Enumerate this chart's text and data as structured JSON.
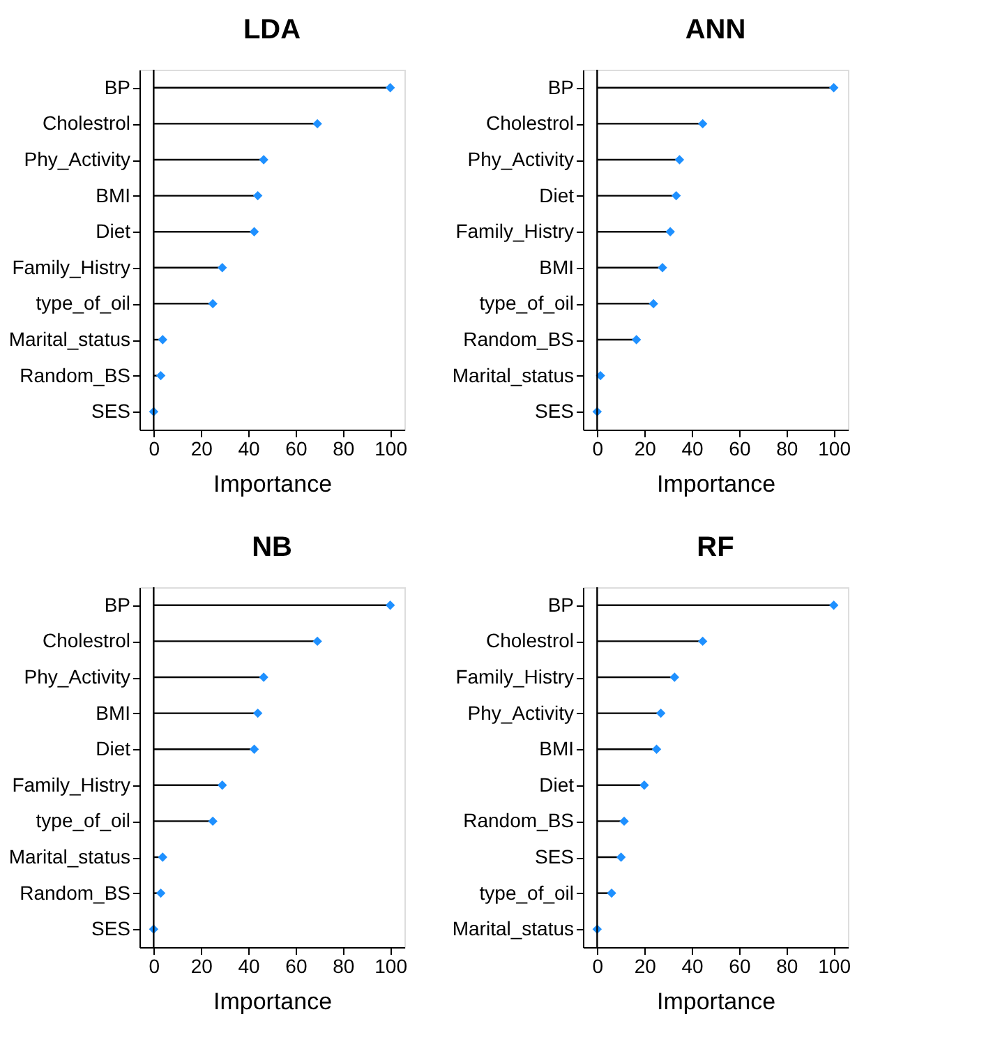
{
  "chart_data": [
    {
      "type": "lollipop",
      "orientation": "horizontal",
      "title": "LDA",
      "xlabel": "Importance",
      "categories": [
        "BP",
        "Cholestrol",
        "Phy_Activity",
        "BMI",
        "Diet",
        "Family_Histry",
        "type_of_oil",
        "Marital_status",
        "Random_BS",
        "SES"
      ],
      "series": [
        {
          "color": "#1e90ff",
          "values": [
            100,
            69.2,
            46.5,
            44,
            42.5,
            29,
            25,
            3.8,
            3,
            0
          ]
        }
      ],
      "xlim": [
        -6,
        106
      ],
      "xticks": [
        0,
        20,
        40,
        60,
        80,
        100
      ],
      "ref_lines": [
        {
          "axis": "x",
          "value": 0
        }
      ],
      "marker": "diamond",
      "grid": false
    },
    {
      "type": "lollipop",
      "orientation": "horizontal",
      "title": "ANN",
      "xlabel": "Importance",
      "categories": [
        "BP",
        "Cholestrol",
        "Phy_Activity",
        "Diet",
        "Family_Histry",
        "BMI",
        "type_of_oil",
        "Random_BS",
        "Marital_status",
        "SES"
      ],
      "series": [
        {
          "color": "#1e90ff",
          "values": [
            100,
            44.6,
            34.8,
            33.4,
            30.9,
            27.6,
            23.8,
            16.6,
            1.4,
            0
          ]
        }
      ],
      "xlim": [
        -6,
        106
      ],
      "xticks": [
        0,
        20,
        40,
        60,
        80,
        100
      ],
      "ref_lines": [
        {
          "axis": "x",
          "value": 0
        }
      ],
      "marker": "diamond",
      "grid": false
    },
    {
      "type": "lollipop",
      "orientation": "horizontal",
      "title": "NB",
      "xlabel": "Importance",
      "categories": [
        "BP",
        "Cholestrol",
        "Phy_Activity",
        "BMI",
        "Diet",
        "Family_Histry",
        "type_of_oil",
        "Marital_status",
        "Random_BS",
        "SES"
      ],
      "series": [
        {
          "color": "#1e90ff",
          "values": [
            100,
            69.2,
            46.5,
            44,
            42.5,
            29,
            25,
            3.8,
            3,
            0
          ]
        }
      ],
      "xlim": [
        -6,
        106
      ],
      "xticks": [
        0,
        20,
        40,
        60,
        80,
        100
      ],
      "ref_lines": [
        {
          "axis": "x",
          "value": 0
        }
      ],
      "marker": "diamond",
      "grid": false
    },
    {
      "type": "lollipop",
      "orientation": "horizontal",
      "title": "RF",
      "xlabel": "Importance",
      "categories": [
        "BP",
        "Cholestrol",
        "Family_Histry",
        "Phy_Activity",
        "BMI",
        "Diet",
        "Random_BS",
        "SES",
        "type_of_oil",
        "Marital_status"
      ],
      "series": [
        {
          "color": "#1e90ff",
          "values": [
            100,
            44.6,
            32.7,
            26.9,
            25.1,
            19.9,
            11.4,
            10.1,
            6.1,
            0
          ]
        }
      ],
      "xlim": [
        -6,
        106
      ],
      "xticks": [
        0,
        20,
        40,
        60,
        80,
        100
      ],
      "ref_lines": [
        {
          "axis": "x",
          "value": 0
        }
      ],
      "marker": "diamond",
      "grid": false
    }
  ]
}
